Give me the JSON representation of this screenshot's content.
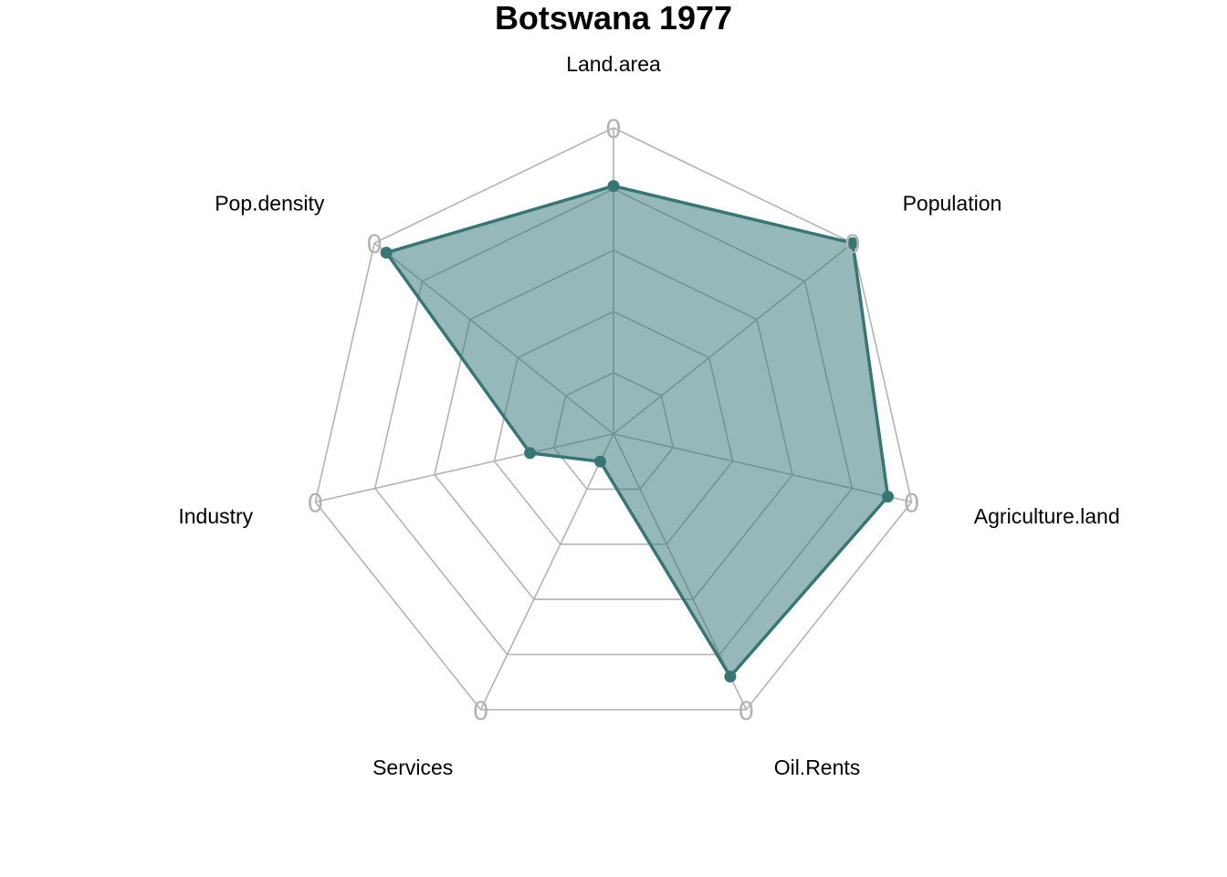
{
  "chart_data": {
    "type": "radar",
    "title": "Botswana 1977",
    "axes": [
      "Land.area",
      "Population",
      "Agriculture.land",
      "Oil.Rents",
      "Services",
      "Industry",
      "Pop.density"
    ],
    "series": [
      {
        "values": [
          0.81,
          1.0,
          0.92,
          0.88,
          0.1,
          0.28,
          0.95
        ]
      }
    ],
    "range": [
      0,
      1
    ],
    "grid_levels": 5,
    "grid_outer_label": "0",
    "colors": {
      "series_line": "#367776",
      "series_fill": "#367776",
      "series_fill_opacity": 0.52,
      "grid": "#b3b3b3"
    }
  }
}
